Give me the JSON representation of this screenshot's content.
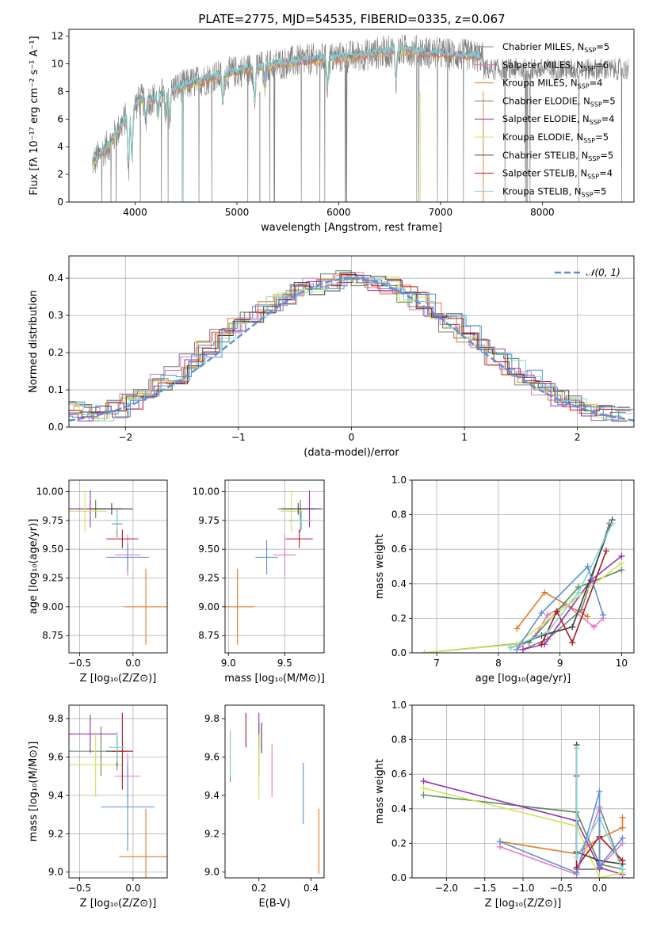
{
  "figure_title": "PLATE=2775, MJD=54535, FIBERID=0335, z=0.067",
  "colors": {
    "Chabrier MILES": "#7f7f7f",
    "Salpeter MILES": "#e377c2",
    "Kroupa MILES": "#e07b28",
    "Chabrier ELODIE": "#5a8a5a",
    "Salpeter ELODIE": "#9a30b8",
    "Kroupa ELODIE": "#d4e157",
    "Chabrier STELIB": "#404040",
    "Salpeter STELIB": "#b0171f",
    "Kroupa STELIB": "#7fd8d8",
    "extra_blue": "#5b8fd8",
    "gaussian": "#5b8fd8",
    "grid": "#b0b0b0"
  },
  "chart_data": [
    {
      "id": "spectrum",
      "type": "line",
      "title": "PLATE=2775, MJD=54535, FIBERID=0335, z=0.067",
      "xlabel": "wavelength [Angstrom, rest frame]",
      "ylabel": "Flux [fλ 10⁻¹⁷ erg cm⁻² s⁻¹ A⁻¹]",
      "xlim": [
        3350,
        8900
      ],
      "ylim": [
        0,
        12.5
      ],
      "xticks": [
        4000,
        5000,
        6000,
        7000,
        8000
      ],
      "yticks": [
        0,
        2,
        4,
        6,
        8,
        10,
        12
      ],
      "grid": false,
      "legend_position": "right",
      "legend": [
        "Chabrier MILES, N_SSP=5",
        "Salpeter MILES, N_SSP=6",
        "Kroupa MILES, N_SSP=4",
        "Chabrier ELODIE, N_SSP=5",
        "Salpeter ELODIE, N_SSP=4",
        "Kroupa ELODIE, N_SSP=5",
        "Chabrier STELIB, N_SSP=5",
        "Salpeter STELIB, N_SSP=4",
        "Kroupa STELIB, N_SSP=5"
      ],
      "continuum": {
        "x": [
          3580,
          3650,
          3750,
          3850,
          3950,
          4050,
          4150,
          4300,
          4500,
          4700,
          4900,
          5100,
          5300,
          5500,
          5700,
          5900,
          6100,
          6300,
          6500,
          6700,
          6900,
          7100,
          7300,
          7400
        ],
        "y": [
          2.8,
          3.4,
          4.2,
          5.4,
          6.6,
          7.4,
          7.4,
          8.0,
          8.5,
          8.9,
          9.3,
          9.6,
          9.9,
          10.1,
          10.3,
          10.4,
          10.5,
          10.7,
          10.9,
          11.0,
          10.8,
          10.7,
          10.6,
          10.5
        ]
      },
      "dips": [
        [
          3934,
          4.0
        ],
        [
          3969,
          3.5
        ],
        [
          4102,
          1.5
        ],
        [
          4227,
          1.5
        ],
        [
          4300,
          2.0
        ],
        [
          4340,
          2.0
        ],
        [
          4861,
          2.0
        ],
        [
          5175,
          2.5
        ],
        [
          5270,
          1.5
        ],
        [
          5890,
          2.0
        ],
        [
          6563,
          2.0
        ]
      ]
    },
    {
      "id": "histogram",
      "type": "line",
      "title": "",
      "xlabel": "(data-model)/error",
      "ylabel": "Normed distribution",
      "xlim": [
        -2.5,
        2.5
      ],
      "ylim": [
        0,
        0.46
      ],
      "xticks": [
        -2,
        -1,
        0,
        1,
        2
      ],
      "yticks": [
        0.0,
        0.1,
        0.2,
        0.3,
        0.4
      ],
      "grid": true,
      "legend_position": "upper right",
      "legend": [
        "𝒩(0, 1)"
      ],
      "step_outline": [
        0.05,
        0.04,
        0.04,
        0.05,
        0.07,
        0.09,
        0.12,
        0.14,
        0.18,
        0.21,
        0.25,
        0.27,
        0.3,
        0.33,
        0.35,
        0.37,
        0.38,
        0.39,
        0.4,
        0.4,
        0.39,
        0.38,
        0.36,
        0.34,
        0.31,
        0.28,
        0.25,
        0.22,
        0.19,
        0.16,
        0.13,
        0.1,
        0.08,
        0.06,
        0.05,
        0.04,
        0.03
      ],
      "bin_width": 0.135
    },
    {
      "id": "age-vs-Z",
      "type": "scatter",
      "title": "",
      "xlabel": "Z [log₁₀(Z/Z⊙)]",
      "ylabel": "age  [log₁₀(age/yr)]",
      "xlim": [
        -0.6,
        0.32
      ],
      "ylim": [
        8.6,
        10.1
      ],
      "xticks": [
        -0.5,
        0.0
      ],
      "yticks": [
        8.75,
        9.0,
        9.25,
        9.5,
        9.75,
        10.0
      ],
      "grid": true,
      "points": [
        {
          "s": "Chabrier MILES",
          "x": -0.15,
          "y": 9.72,
          "xe": 0.05,
          "ye": 0.12
        },
        {
          "s": "Salpeter MILES",
          "x": -0.05,
          "y": 9.45,
          "xe": 0.12,
          "ye": 0.18
        },
        {
          "s": "Kroupa MILES",
          "x": 0.12,
          "y": 9.0,
          "xe": 0.2,
          "ye": 0.33
        },
        {
          "s": "Chabrier ELODIE",
          "x": -0.35,
          "y": 9.85,
          "xe": 0.25,
          "ye": 0.08
        },
        {
          "s": "Salpeter ELODIE",
          "x": -0.4,
          "y": 9.85,
          "xe": 0.3,
          "ye": 0.16
        },
        {
          "s": "Kroupa ELODIE",
          "x": -0.45,
          "y": 9.83,
          "xe": 0.2,
          "ye": 0.18
        },
        {
          "s": "Chabrier STELIB",
          "x": -0.2,
          "y": 9.85,
          "xe": 0.2,
          "ye": 0.05
        },
        {
          "s": "Salpeter STELIB",
          "x": -0.1,
          "y": 9.59,
          "xe": 0.15,
          "ye": 0.08
        },
        {
          "s": "Kroupa STELIB",
          "x": -0.15,
          "y": 9.75,
          "xe": 0.1,
          "ye": 0.08
        },
        {
          "s": "extra_blue",
          "x": -0.05,
          "y": 9.43,
          "xe": 0.2,
          "ye": 0.12
        }
      ]
    },
    {
      "id": "age-vs-mass",
      "type": "scatter",
      "title": "",
      "xlabel": "mass [log₁₀(M/M⊙)]",
      "ylabel": "",
      "xlim": [
        8.97,
        9.85
      ],
      "ylim": [
        8.6,
        10.1
      ],
      "xticks": [
        9.0,
        9.5
      ],
      "yticks": [
        8.75,
        9.0,
        9.25,
        9.5,
        9.75,
        10.0
      ],
      "grid": true,
      "points": [
        {
          "s": "Chabrier MILES",
          "x": 9.64,
          "y": 9.75,
          "xe": 0.1,
          "ye": 0.1
        },
        {
          "s": "Salpeter MILES",
          "x": 9.5,
          "y": 9.45,
          "xe": 0.1,
          "ye": 0.18
        },
        {
          "s": "Kroupa MILES",
          "x": 9.08,
          "y": 9.0,
          "xe": 0.15,
          "ye": 0.33
        },
        {
          "s": "Chabrier ELODIE",
          "x": 9.64,
          "y": 9.85,
          "xe": 0.2,
          "ye": 0.08
        },
        {
          "s": "Salpeter ELODIE",
          "x": 9.72,
          "y": 9.85,
          "xe": 0.1,
          "ye": 0.16
        },
        {
          "s": "Kroupa ELODIE",
          "x": 9.56,
          "y": 9.83,
          "xe": 0.1,
          "ye": 0.18
        },
        {
          "s": "Chabrier STELIB",
          "x": 9.62,
          "y": 9.85,
          "xe": 0.15,
          "ye": 0.05
        },
        {
          "s": "Salpeter STELIB",
          "x": 9.63,
          "y": 9.59,
          "xe": 0.12,
          "ye": 0.08
        },
        {
          "s": "Kroupa STELIB",
          "x": 9.65,
          "y": 9.75,
          "xe": 0.08,
          "ye": 0.08
        },
        {
          "s": "extra_blue",
          "x": 9.34,
          "y": 9.43,
          "xe": 0.1,
          "ye": 0.15
        }
      ]
    },
    {
      "id": "weight-vs-age",
      "type": "line",
      "title": "",
      "xlabel": "age  [log₁₀(age/yr)]",
      "ylabel": "mass weight",
      "xlim": [
        6.6,
        10.2
      ],
      "ylim": [
        0,
        1.0
      ],
      "xticks": [
        7,
        8,
        9,
        10
      ],
      "yticks": [
        0.0,
        0.2,
        0.4,
        0.6,
        0.8,
        1.0
      ],
      "grid": true,
      "series": [
        {
          "s": "Chabrier MILES",
          "x": [
            8.4,
            8.8,
            9.35,
            9.8
          ],
          "y": [
            0.02,
            0.08,
            0.25,
            0.75
          ]
        },
        {
          "s": "Salpeter MILES",
          "x": [
            8.3,
            8.6,
            8.8,
            9.1,
            9.55,
            9.7
          ],
          "y": [
            0.02,
            0.1,
            0.22,
            0.28,
            0.15,
            0.2
          ]
        },
        {
          "s": "Kroupa MILES",
          "x": [
            8.3,
            8.75,
            9.45
          ],
          "y": [
            0.14,
            0.35,
            0.21
          ]
        },
        {
          "s": "Chabrier ELODIE",
          "x": [
            6.8,
            8.5,
            9.3,
            10.0
          ],
          "y": [
            0.0,
            0.06,
            0.38,
            0.48
          ]
        },
        {
          "s": "Salpeter ELODIE",
          "x": [
            8.4,
            8.75,
            9.5,
            10.0
          ],
          "y": [
            0.02,
            0.05,
            0.42,
            0.56
          ]
        },
        {
          "s": "Kroupa ELODIE",
          "x": [
            6.8,
            8.3,
            9.2,
            10.0
          ],
          "y": [
            0.0,
            0.05,
            0.3,
            0.52
          ]
        },
        {
          "s": "Chabrier STELIB",
          "x": [
            8.2,
            8.7,
            9.2,
            9.85
          ],
          "y": [
            0.03,
            0.1,
            0.15,
            0.77
          ]
        },
        {
          "s": "Salpeter STELIB",
          "x": [
            8.7,
            8.95,
            9.2,
            9.75
          ],
          "y": [
            0.05,
            0.24,
            0.06,
            0.59
          ]
        },
        {
          "s": "Kroupa STELIB",
          "x": [
            8.2,
            8.8,
            9.3,
            9.85
          ],
          "y": [
            0.03,
            0.12,
            0.35,
            0.75
          ]
        },
        {
          "s": "extra_blue",
          "x": [
            8.3,
            8.7,
            9.45,
            9.7
          ],
          "y": [
            0.02,
            0.23,
            0.5,
            0.22
          ]
        }
      ]
    },
    {
      "id": "mass-vs-Z",
      "type": "scatter",
      "title": "",
      "xlabel": "Z [log₁₀(Z/Z⊙)]",
      "ylabel": "mass [log₁₀(M/M⊙)]",
      "xlim": [
        -0.6,
        0.32
      ],
      "ylim": [
        8.97,
        9.87
      ],
      "xticks": [
        -0.5,
        0.0
      ],
      "yticks": [
        9.0,
        9.2,
        9.4,
        9.6,
        9.8
      ],
      "grid": true,
      "points": [
        {
          "s": "Chabrier MILES",
          "x": -0.15,
          "y": 9.63,
          "xe": 0.05,
          "ye": 0.1
        },
        {
          "s": "Salpeter MILES",
          "x": -0.05,
          "y": 9.5,
          "xe": 0.12,
          "ye": 0.12
        },
        {
          "s": "Kroupa MILES",
          "x": 0.12,
          "y": 9.08,
          "xe": 0.25,
          "ye": 0.25
        },
        {
          "s": "Chabrier ELODIE",
          "x": -0.3,
          "y": 9.63,
          "xe": 0.3,
          "ye": 0.13
        },
        {
          "s": "Salpeter ELODIE",
          "x": -0.4,
          "y": 9.72,
          "xe": 0.25,
          "ye": 0.1
        },
        {
          "s": "Kroupa ELODIE",
          "x": -0.35,
          "y": 9.56,
          "xe": 0.25,
          "ye": 0.17
        },
        {
          "s": "Chabrier STELIB",
          "x": -0.15,
          "y": 9.63,
          "xe": 0.1,
          "ye": 0.08
        },
        {
          "s": "Salpeter STELIB",
          "x": -0.1,
          "y": 9.63,
          "xe": 0.1,
          "ye": 0.2
        },
        {
          "s": "Kroupa STELIB",
          "x": -0.15,
          "y": 9.65,
          "xe": 0.08,
          "ye": 0.08
        },
        {
          "s": "extra_blue",
          "x": -0.05,
          "y": 9.34,
          "xe": 0.25,
          "ye": 0.23
        }
      ]
    },
    {
      "id": "mass-vs-ebv",
      "type": "scatter",
      "title": "",
      "xlabel": "E(B-V)",
      "ylabel": "",
      "xlim": [
        0.07,
        0.45
      ],
      "ylim": [
        8.97,
        9.87
      ],
      "xticks": [
        0.2,
        0.4
      ],
      "yticks": [
        9.0,
        9.2,
        9.4,
        9.6,
        9.8
      ],
      "grid": false,
      "points": [
        {
          "s": "Chabrier MILES",
          "x": 0.09,
          "y": 9.6,
          "xe": 0,
          "ye": 0.13
        },
        {
          "s": "Salpeter MILES",
          "x": 0.25,
          "y": 9.53,
          "xe": 0,
          "ye": 0.14
        },
        {
          "s": "Kroupa MILES",
          "x": 0.43,
          "y": 9.16,
          "xe": 0,
          "ye": 0.17
        },
        {
          "s": "Chabrier ELODIE",
          "x": 0.2,
          "y": 9.64,
          "xe": 0,
          "ye": 0.14
        },
        {
          "s": "Salpeter ELODIE",
          "x": 0.2,
          "y": 9.74,
          "xe": 0,
          "ye": 0.09
        },
        {
          "s": "Kroupa ELODIE",
          "x": 0.2,
          "y": 9.55,
          "xe": 0,
          "ye": 0.17
        },
        {
          "s": "Chabrier STELIB",
          "x": 0.21,
          "y": 9.7,
          "xe": 0,
          "ye": 0.08
        },
        {
          "s": "Salpeter STELIB",
          "x": 0.15,
          "y": 9.74,
          "xe": 0,
          "ye": 0.09
        },
        {
          "s": "Kroupa STELIB",
          "x": 0.09,
          "y": 9.62,
          "xe": 0,
          "ye": 0.12
        },
        {
          "s": "extra_blue",
          "x": 0.37,
          "y": 9.41,
          "xe": 0,
          "ye": 0.16
        }
      ]
    },
    {
      "id": "weight-vs-Z",
      "type": "line",
      "title": "",
      "xlabel": "Z [log₁₀(Z/Z⊙)]",
      "ylabel": "mass weight",
      "xlim": [
        -2.45,
        0.45
      ],
      "ylim": [
        0,
        1.0
      ],
      "xticks": [
        -2.0,
        -1.5,
        -1.0,
        -0.5,
        0.0
      ],
      "yticks": [
        0.0,
        0.2,
        0.4,
        0.6,
        0.8,
        1.0
      ],
      "grid": true,
      "series": [
        {
          "s": "Chabrier MILES",
          "x": [
            -0.3,
            -0.3,
            0.0,
            0.0,
            0.3
          ],
          "y": [
            0.77,
            0.05,
            0.05,
            0.41,
            0.05
          ]
        },
        {
          "s": "Salpeter MILES",
          "x": [
            -1.3,
            -0.3,
            0.0,
            0.0,
            0.3
          ],
          "y": [
            0.18,
            0.02,
            0.41,
            0.06,
            0.2
          ]
        },
        {
          "s": "Kroupa MILES",
          "x": [
            -1.3,
            -0.3,
            0.0,
            0.3,
            0.3
          ],
          "y": [
            0.21,
            0.14,
            0.23,
            0.29,
            0.35
          ]
        },
        {
          "s": "Chabrier ELODIE",
          "x": [
            -2.3,
            -0.3,
            0.0,
            0.3
          ],
          "y": [
            0.48,
            0.38,
            0.08,
            0.05
          ]
        },
        {
          "s": "Salpeter ELODIE",
          "x": [
            -2.3,
            -0.3,
            0.0,
            0.3
          ],
          "y": [
            0.56,
            0.33,
            0.06,
            0.02
          ]
        },
        {
          "s": "Kroupa ELODIE",
          "x": [
            -2.3,
            -0.3,
            0.0,
            0.3
          ],
          "y": [
            0.52,
            0.3,
            0.0,
            0.03
          ]
        },
        {
          "s": "Chabrier STELIB",
          "x": [
            -0.3,
            -0.3,
            0.0,
            0.3
          ],
          "y": [
            0.77,
            0.15,
            0.1,
            0.08
          ]
        },
        {
          "s": "Salpeter STELIB",
          "x": [
            -0.3,
            -0.3,
            0.0,
            0.3
          ],
          "y": [
            0.59,
            0.06,
            0.24,
            0.1
          ]
        },
        {
          "s": "Kroupa STELIB",
          "x": [
            -0.3,
            -0.3,
            0.0,
            0.3
          ],
          "y": [
            0.75,
            0.12,
            0.35,
            0.05
          ]
        },
        {
          "s": "extra_blue",
          "x": [
            -1.3,
            -0.3,
            0.0,
            0.0,
            0.3
          ],
          "y": [
            0.21,
            0.03,
            0.5,
            0.07,
            0.23
          ]
        }
      ]
    }
  ]
}
